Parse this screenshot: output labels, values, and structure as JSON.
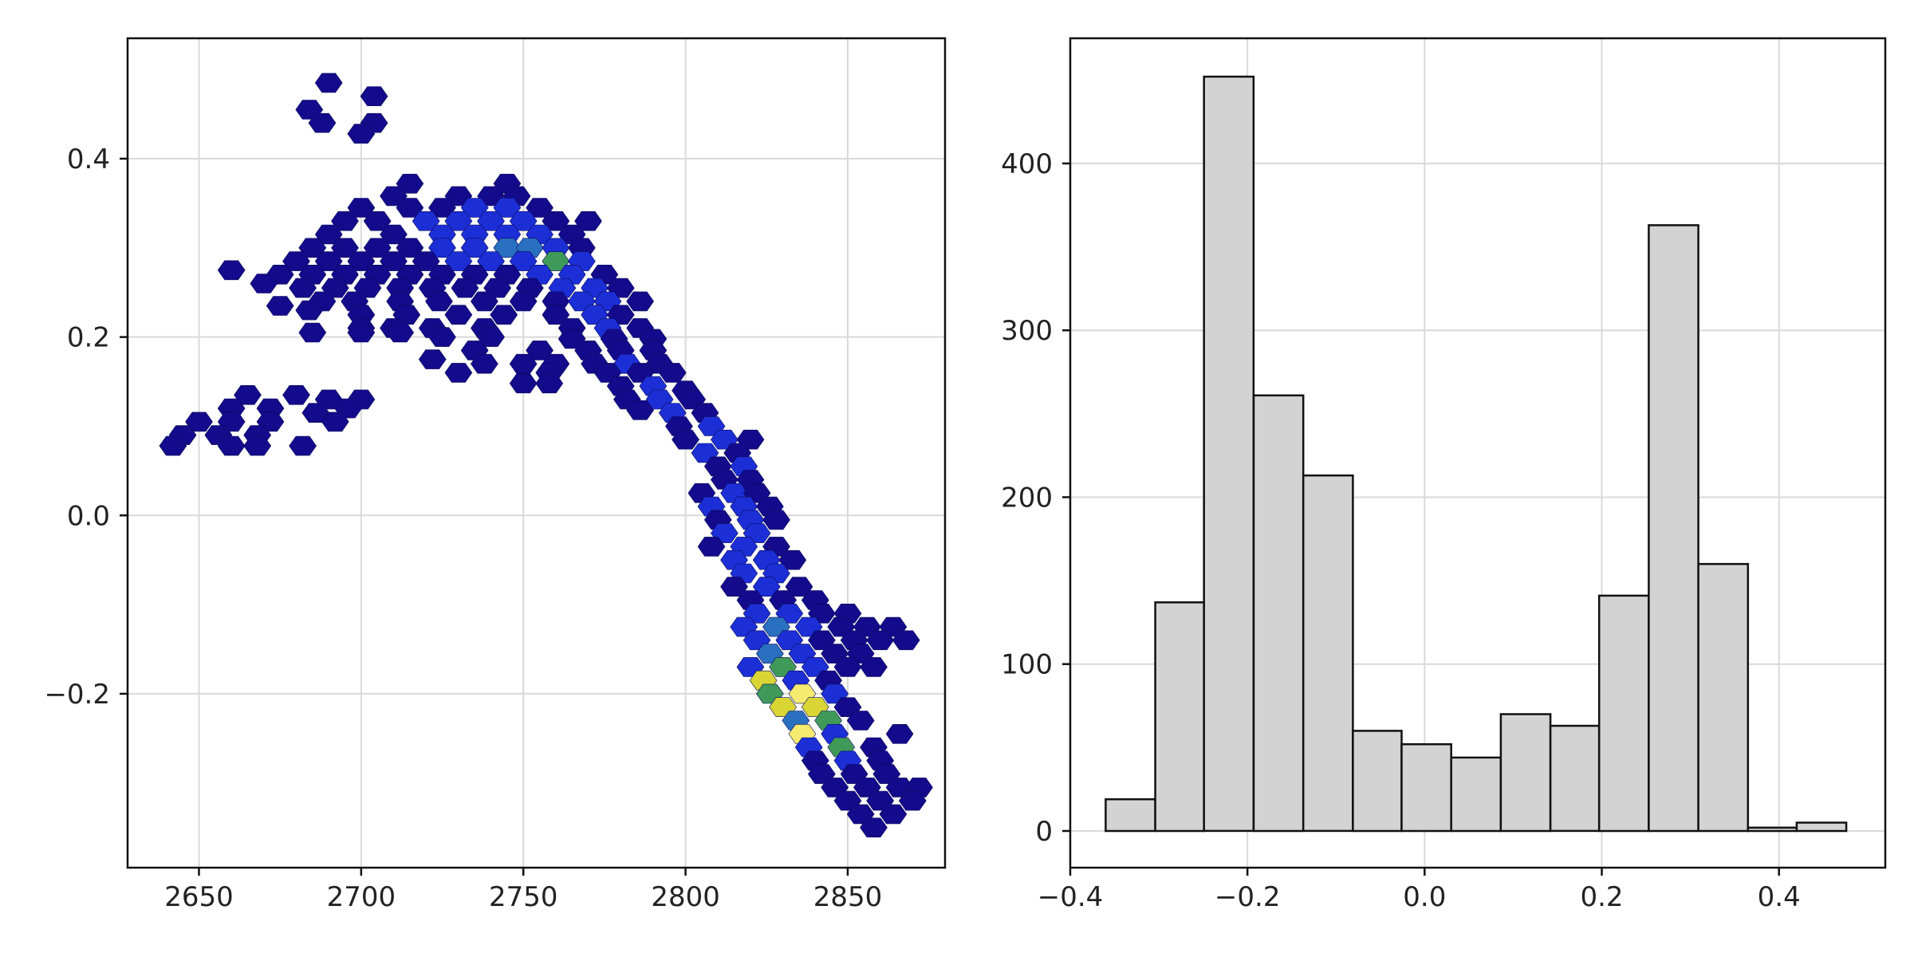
{
  "chart_data": [
    {
      "type": "hexbin",
      "xlim": [
        2628,
        2880
      ],
      "ylim": [
        -0.395,
        0.535
      ],
      "x_ticks": [
        2650,
        2700,
        2750,
        2800,
        2850
      ],
      "y_ticks": [
        -0.2,
        0.0,
        0.2,
        0.4
      ],
      "x_tick_labels": [
        "2650",
        "2700",
        "2750",
        "2800",
        "2850"
      ],
      "y_tick_labels": [
        "−0.2",
        "0.0",
        "0.2",
        "0.4"
      ],
      "grid": true,
      "colormap": [
        "#140a8c",
        "#1c2fd6",
        "#2a70c0",
        "#3f9a5a",
        "#d8d535",
        "#f5eb70"
      ],
      "cells": [
        [
          2690,
          0.485,
          0
        ],
        [
          2704,
          0.47,
          0
        ],
        [
          2684,
          0.455,
          0
        ],
        [
          2688,
          0.44,
          0
        ],
        [
          2704,
          0.44,
          0
        ],
        [
          2700,
          0.428,
          0
        ],
        [
          2715,
          0.372,
          0
        ],
        [
          2745,
          0.372,
          0
        ],
        [
          2710,
          0.358,
          0
        ],
        [
          2730,
          0.358,
          0
        ],
        [
          2740,
          0.358,
          0
        ],
        [
          2748,
          0.358,
          0
        ],
        [
          2700,
          0.345,
          0
        ],
        [
          2715,
          0.345,
          0
        ],
        [
          2725,
          0.345,
          0
        ],
        [
          2735,
          0.345,
          1
        ],
        [
          2745,
          0.345,
          1
        ],
        [
          2755,
          0.345,
          0
        ],
        [
          2695,
          0.33,
          0
        ],
        [
          2705,
          0.33,
          0
        ],
        [
          2720,
          0.33,
          1
        ],
        [
          2730,
          0.33,
          1
        ],
        [
          2740,
          0.33,
          1
        ],
        [
          2750,
          0.33,
          1
        ],
        [
          2760,
          0.33,
          0
        ],
        [
          2770,
          0.33,
          0
        ],
        [
          2690,
          0.315,
          0
        ],
        [
          2710,
          0.315,
          0
        ],
        [
          2725,
          0.315,
          1
        ],
        [
          2735,
          0.315,
          1
        ],
        [
          2745,
          0.315,
          1
        ],
        [
          2755,
          0.315,
          1
        ],
        [
          2765,
          0.315,
          0
        ],
        [
          2685,
          0.3,
          0
        ],
        [
          2695,
          0.3,
          0
        ],
        [
          2705,
          0.3,
          0
        ],
        [
          2715,
          0.3,
          0
        ],
        [
          2725,
          0.3,
          1
        ],
        [
          2735,
          0.3,
          1
        ],
        [
          2745,
          0.3,
          2
        ],
        [
          2752,
          0.3,
          2
        ],
        [
          2760,
          0.3,
          1
        ],
        [
          2768,
          0.3,
          0
        ],
        [
          2680,
          0.285,
          0
        ],
        [
          2690,
          0.285,
          0
        ],
        [
          2700,
          0.285,
          0
        ],
        [
          2710,
          0.285,
          0
        ],
        [
          2720,
          0.285,
          0
        ],
        [
          2730,
          0.285,
          1
        ],
        [
          2740,
          0.285,
          1
        ],
        [
          2750,
          0.285,
          1
        ],
        [
          2760,
          0.285,
          3
        ],
        [
          2768,
          0.285,
          1
        ],
        [
          2660,
          0.275,
          0
        ],
        [
          2675,
          0.27,
          0
        ],
        [
          2685,
          0.27,
          0
        ],
        [
          2695,
          0.27,
          0
        ],
        [
          2705,
          0.27,
          0
        ],
        [
          2715,
          0.27,
          0
        ],
        [
          2725,
          0.27,
          0
        ],
        [
          2735,
          0.27,
          0
        ],
        [
          2745,
          0.27,
          0
        ],
        [
          2755,
          0.27,
          1
        ],
        [
          2765,
          0.27,
          1
        ],
        [
          2775,
          0.27,
          0
        ],
        [
          2670,
          0.26,
          0
        ],
        [
          2682,
          0.255,
          0
        ],
        [
          2692,
          0.255,
          0
        ],
        [
          2702,
          0.255,
          0
        ],
        [
          2712,
          0.255,
          0
        ],
        [
          2722,
          0.255,
          0
        ],
        [
          2732,
          0.255,
          0
        ],
        [
          2742,
          0.255,
          0
        ],
        [
          2752,
          0.255,
          0
        ],
        [
          2762,
          0.255,
          1
        ],
        [
          2772,
          0.255,
          1
        ],
        [
          2780,
          0.255,
          0
        ],
        [
          2688,
          0.24,
          0
        ],
        [
          2698,
          0.24,
          0
        ],
        [
          2712,
          0.24,
          0
        ],
        [
          2724,
          0.24,
          0
        ],
        [
          2738,
          0.24,
          0
        ],
        [
          2750,
          0.24,
          0
        ],
        [
          2760,
          0.24,
          0
        ],
        [
          2768,
          0.24,
          1
        ],
        [
          2776,
          0.24,
          1
        ],
        [
          2786,
          0.24,
          0
        ],
        [
          2675,
          0.235,
          0
        ],
        [
          2684,
          0.23,
          0
        ],
        [
          2700,
          0.225,
          0
        ],
        [
          2714,
          0.225,
          0
        ],
        [
          2730,
          0.225,
          0
        ],
        [
          2744,
          0.225,
          0
        ],
        [
          2760,
          0.225,
          0
        ],
        [
          2772,
          0.225,
          1
        ],
        [
          2780,
          0.225,
          0
        ],
        [
          2685,
          0.205,
          0
        ],
        [
          2700,
          0.21,
          0
        ],
        [
          2710,
          0.21,
          0
        ],
        [
          2722,
          0.21,
          0
        ],
        [
          2738,
          0.21,
          0
        ],
        [
          2765,
          0.21,
          0
        ],
        [
          2776,
          0.21,
          1
        ],
        [
          2786,
          0.21,
          0
        ],
        [
          2700,
          0.205,
          0
        ],
        [
          2712,
          0.205,
          0
        ],
        [
          2725,
          0.2,
          0
        ],
        [
          2740,
          0.2,
          0
        ],
        [
          2765,
          0.198,
          0
        ],
        [
          2778,
          0.198,
          0
        ],
        [
          2790,
          0.198,
          0
        ],
        [
          2735,
          0.185,
          0
        ],
        [
          2755,
          0.185,
          0
        ],
        [
          2770,
          0.185,
          0
        ],
        [
          2780,
          0.185,
          0
        ],
        [
          2790,
          0.185,
          0
        ],
        [
          2722,
          0.175,
          0
        ],
        [
          2738,
          0.17,
          0
        ],
        [
          2750,
          0.17,
          0
        ],
        [
          2760,
          0.17,
          0
        ],
        [
          2772,
          0.17,
          0
        ],
        [
          2782,
          0.17,
          1
        ],
        [
          2792,
          0.17,
          0
        ],
        [
          2730,
          0.16,
          0
        ],
        [
          2758,
          0.16,
          0
        ],
        [
          2776,
          0.16,
          0
        ],
        [
          2786,
          0.16,
          0
        ],
        [
          2796,
          0.16,
          0
        ],
        [
          2750,
          0.148,
          0
        ],
        [
          2758,
          0.148,
          0
        ],
        [
          2780,
          0.145,
          0
        ],
        [
          2790,
          0.145,
          1
        ],
        [
          2800,
          0.14,
          0
        ],
        [
          2665,
          0.135,
          0
        ],
        [
          2680,
          0.135,
          0
        ],
        [
          2690,
          0.13,
          0
        ],
        [
          2700,
          0.13,
          0
        ],
        [
          2782,
          0.13,
          0
        ],
        [
          2792,
          0.13,
          1
        ],
        [
          2802,
          0.13,
          0
        ],
        [
          2660,
          0.12,
          0
        ],
        [
          2672,
          0.12,
          0
        ],
        [
          2686,
          0.115,
          0
        ],
        [
          2696,
          0.12,
          0
        ],
        [
          2786,
          0.118,
          0
        ],
        [
          2796,
          0.115,
          1
        ],
        [
          2806,
          0.115,
          0
        ],
        [
          2650,
          0.105,
          0
        ],
        [
          2660,
          0.105,
          0
        ],
        [
          2672,
          0.105,
          0
        ],
        [
          2692,
          0.105,
          0
        ],
        [
          2798,
          0.1,
          0
        ],
        [
          2808,
          0.1,
          1
        ],
        [
          2645,
          0.09,
          0
        ],
        [
          2656,
          0.09,
          0
        ],
        [
          2668,
          0.09,
          0
        ],
        [
          2800,
          0.085,
          0
        ],
        [
          2812,
          0.085,
          1
        ],
        [
          2820,
          0.085,
          0
        ],
        [
          2642,
          0.078,
          0
        ],
        [
          2660,
          0.078,
          0
        ],
        [
          2668,
          0.078,
          0
        ],
        [
          2682,
          0.078,
          0
        ],
        [
          2806,
          0.07,
          1
        ],
        [
          2816,
          0.07,
          0
        ],
        [
          2810,
          0.055,
          0
        ],
        [
          2818,
          0.055,
          1
        ],
        [
          2812,
          0.04,
          0
        ],
        [
          2820,
          0.04,
          0
        ],
        [
          2805,
          0.025,
          0
        ],
        [
          2815,
          0.025,
          1
        ],
        [
          2822,
          0.025,
          0
        ],
        [
          2808,
          0.01,
          1
        ],
        [
          2818,
          0.01,
          1
        ],
        [
          2826,
          0.01,
          0
        ],
        [
          2810,
          -0.005,
          0
        ],
        [
          2820,
          -0.005,
          1
        ],
        [
          2828,
          -0.005,
          0
        ],
        [
          2812,
          -0.02,
          1
        ],
        [
          2822,
          -0.02,
          1
        ],
        [
          2808,
          -0.035,
          0
        ],
        [
          2818,
          -0.035,
          1
        ],
        [
          2828,
          -0.035,
          0
        ],
        [
          2815,
          -0.05,
          1
        ],
        [
          2825,
          -0.05,
          1
        ],
        [
          2833,
          -0.05,
          0
        ],
        [
          2818,
          -0.065,
          1
        ],
        [
          2828,
          -0.065,
          1
        ],
        [
          2815,
          -0.08,
          0
        ],
        [
          2825,
          -0.08,
          1
        ],
        [
          2835,
          -0.08,
          0
        ],
        [
          2820,
          -0.095,
          0
        ],
        [
          2830,
          -0.095,
          0
        ],
        [
          2840,
          -0.095,
          0
        ],
        [
          2822,
          -0.11,
          1
        ],
        [
          2832,
          -0.11,
          1
        ],
        [
          2842,
          -0.11,
          0
        ],
        [
          2850,
          -0.11,
          0
        ],
        [
          2818,
          -0.125,
          1
        ],
        [
          2828,
          -0.125,
          2
        ],
        [
          2838,
          -0.125,
          1
        ],
        [
          2848,
          -0.125,
          0
        ],
        [
          2856,
          -0.125,
          0
        ],
        [
          2864,
          -0.125,
          0
        ],
        [
          2822,
          -0.14,
          1
        ],
        [
          2832,
          -0.14,
          1
        ],
        [
          2842,
          -0.14,
          0
        ],
        [
          2852,
          -0.14,
          0
        ],
        [
          2860,
          -0.14,
          0
        ],
        [
          2868,
          -0.14,
          0
        ],
        [
          2826,
          -0.155,
          2
        ],
        [
          2836,
          -0.155,
          1
        ],
        [
          2846,
          -0.155,
          0
        ],
        [
          2854,
          -0.155,
          0
        ],
        [
          2820,
          -0.17,
          1
        ],
        [
          2830,
          -0.17,
          3
        ],
        [
          2840,
          -0.17,
          1
        ],
        [
          2850,
          -0.17,
          0
        ],
        [
          2858,
          -0.17,
          0
        ],
        [
          2824,
          -0.185,
          4
        ],
        [
          2834,
          -0.185,
          1
        ],
        [
          2844,
          -0.185,
          0
        ],
        [
          2826,
          -0.2,
          3
        ],
        [
          2836,
          -0.2,
          5
        ],
        [
          2846,
          -0.2,
          1
        ],
        [
          2830,
          -0.215,
          4
        ],
        [
          2840,
          -0.215,
          4
        ],
        [
          2850,
          -0.215,
          0
        ],
        [
          2834,
          -0.23,
          2
        ],
        [
          2844,
          -0.23,
          3
        ],
        [
          2854,
          -0.23,
          0
        ],
        [
          2836,
          -0.245,
          5
        ],
        [
          2846,
          -0.245,
          1
        ],
        [
          2866,
          -0.245,
          0
        ],
        [
          2838,
          -0.26,
          1
        ],
        [
          2848,
          -0.26,
          3
        ],
        [
          2858,
          -0.26,
          0
        ],
        [
          2840,
          -0.275,
          0
        ],
        [
          2850,
          -0.275,
          1
        ],
        [
          2860,
          -0.275,
          0
        ],
        [
          2842,
          -0.29,
          0
        ],
        [
          2852,
          -0.29,
          0
        ],
        [
          2862,
          -0.29,
          0
        ],
        [
          2846,
          -0.305,
          0
        ],
        [
          2856,
          -0.305,
          0
        ],
        [
          2866,
          -0.305,
          0
        ],
        [
          2872,
          -0.305,
          0
        ],
        [
          2850,
          -0.32,
          0
        ],
        [
          2860,
          -0.32,
          0
        ],
        [
          2870,
          -0.32,
          0
        ],
        [
          2854,
          -0.335,
          0
        ],
        [
          2864,
          -0.335,
          0
        ],
        [
          2858,
          -0.35,
          0
        ]
      ]
    },
    {
      "type": "bar",
      "xlim": [
        -0.4,
        0.52
      ],
      "ylim": [
        -22,
        475
      ],
      "x_ticks": [
        -0.4,
        -0.2,
        0.0,
        0.2,
        0.4
      ],
      "y_ticks": [
        0,
        100,
        200,
        300,
        400
      ],
      "x_tick_labels": [
        "−0.4",
        "−0.2",
        "0.0",
        "0.2",
        "0.4"
      ],
      "y_tick_labels": [
        "0",
        "100",
        "200",
        "300",
        "400"
      ],
      "grid": true,
      "bar_color": "#d3d3d3",
      "bin_edges": [
        -0.36,
        -0.304,
        -0.249,
        -0.193,
        -0.137,
        -0.081,
        -0.026,
        0.03,
        0.086,
        0.142,
        0.197,
        0.253,
        0.309,
        0.365,
        0.42,
        0.476
      ],
      "values": [
        19,
        137,
        452,
        261,
        213,
        60,
        52,
        44,
        70,
        63,
        141,
        363,
        160,
        2,
        5
      ]
    }
  ]
}
